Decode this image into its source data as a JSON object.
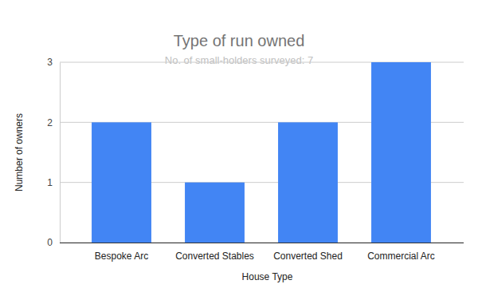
{
  "chart_data": {
    "type": "bar",
    "title": "Type of run owned",
    "subtitle": "No. of small-holders surveyed: 7",
    "x_label": "House Type",
    "y_label": "Number of owners",
    "categories": [
      "Bespoke Arc",
      "Converted Stables",
      "Converted Shed",
      "Commercial Arc"
    ],
    "values": [
      2,
      1,
      2,
      3
    ],
    "color": "#4285f4",
    "ylim": [
      0,
      3
    ],
    "yticks": [
      0,
      1,
      2,
      3
    ],
    "grid": true
  }
}
